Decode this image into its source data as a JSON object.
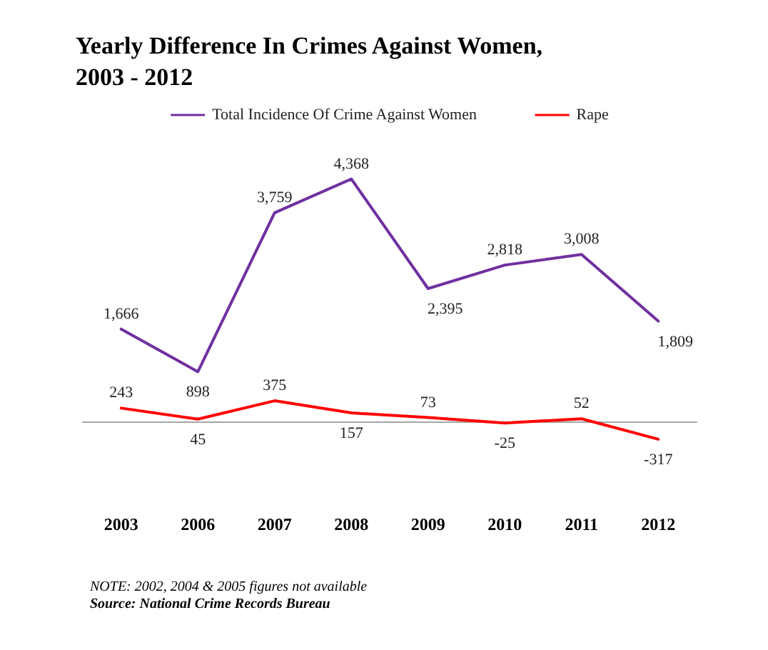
{
  "chart_data": {
    "type": "line",
    "title": "Yearly Difference In Crimes Against Women,\n2003 - 2012",
    "categories": [
      "2003",
      "2006",
      "2007",
      "2008",
      "2009",
      "2010",
      "2011",
      "2012"
    ],
    "series": [
      {
        "name": "Total Incidence Of Crime Against Women",
        "color": "#7030a0",
        "values": [
          1666,
          898,
          3759,
          4368,
          2395,
          2818,
          3008,
          1809
        ],
        "value_labels": [
          "1,666",
          "898",
          "3,759",
          "4,368",
          "2,395",
          "2,818",
          "3,008",
          "1,809"
        ]
      },
      {
        "name": "Rape",
        "color": "#ff0000",
        "values": [
          243,
          45,
          375,
          157,
          73,
          -25,
          52,
          -317
        ],
        "value_labels": [
          "243",
          "45",
          "375",
          "157",
          "73",
          "-25",
          "52",
          "-317"
        ]
      }
    ],
    "marker": "none",
    "line_style": "solid",
    "grid": false,
    "legend": "top",
    "annotations": [
      "NOTE: 2002, 2004 & 2005 figures not available",
      "Source: National Crime Records Bureau"
    ]
  }
}
